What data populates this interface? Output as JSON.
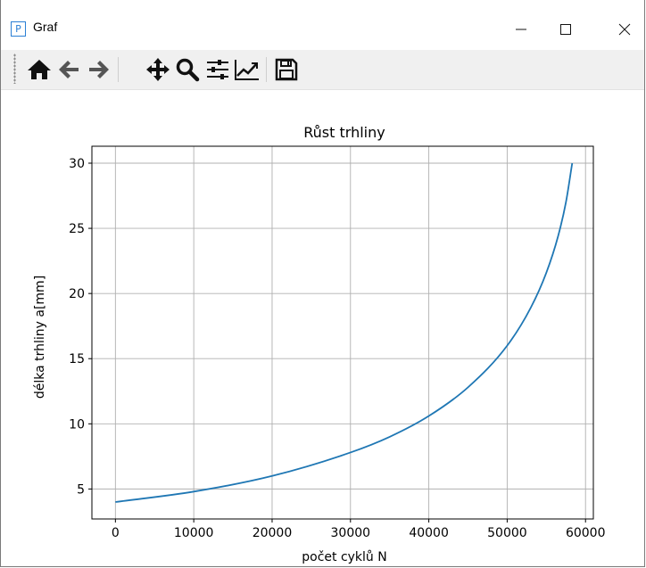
{
  "window": {
    "title": "Graf",
    "app_icon_letter": "P"
  },
  "toolbar": {
    "buttons": [
      {
        "name": "home",
        "icon": "home-icon"
      },
      {
        "name": "back",
        "icon": "arrow-left-icon"
      },
      {
        "name": "forward",
        "icon": "arrow-right-icon"
      },
      {
        "name": "pan",
        "icon": "move-icon"
      },
      {
        "name": "zoom",
        "icon": "magnifier-icon"
      },
      {
        "name": "configure-subplots",
        "icon": "sliders-icon"
      },
      {
        "name": "edit-axis",
        "icon": "line-chart-icon"
      },
      {
        "name": "save",
        "icon": "floppy-disk-icon"
      }
    ]
  },
  "chart_data": {
    "type": "line",
    "title": "Růst trhliny",
    "xlabel": "počet cyklů N",
    "ylabel": "délka trhliny a[mm]",
    "xlim": [
      -3000,
      61000
    ],
    "ylim": [
      2.7,
      31.3
    ],
    "xticks": [
      0,
      10000,
      20000,
      30000,
      40000,
      50000,
      60000
    ],
    "yticks": [
      5,
      10,
      15,
      20,
      25,
      30
    ],
    "grid": true,
    "line_color": "#1f77b4",
    "series": [
      {
        "x": [
          0,
          10000,
          20000,
          30000,
          35000,
          40000,
          45000,
          50000,
          53000,
          55000,
          56500,
          57500,
          58300
        ],
        "y": [
          4.0,
          4.8,
          6.0,
          7.8,
          9.0,
          10.6,
          12.8,
          16.0,
          18.9,
          21.6,
          24.4,
          27.0,
          30.0
        ]
      }
    ]
  }
}
